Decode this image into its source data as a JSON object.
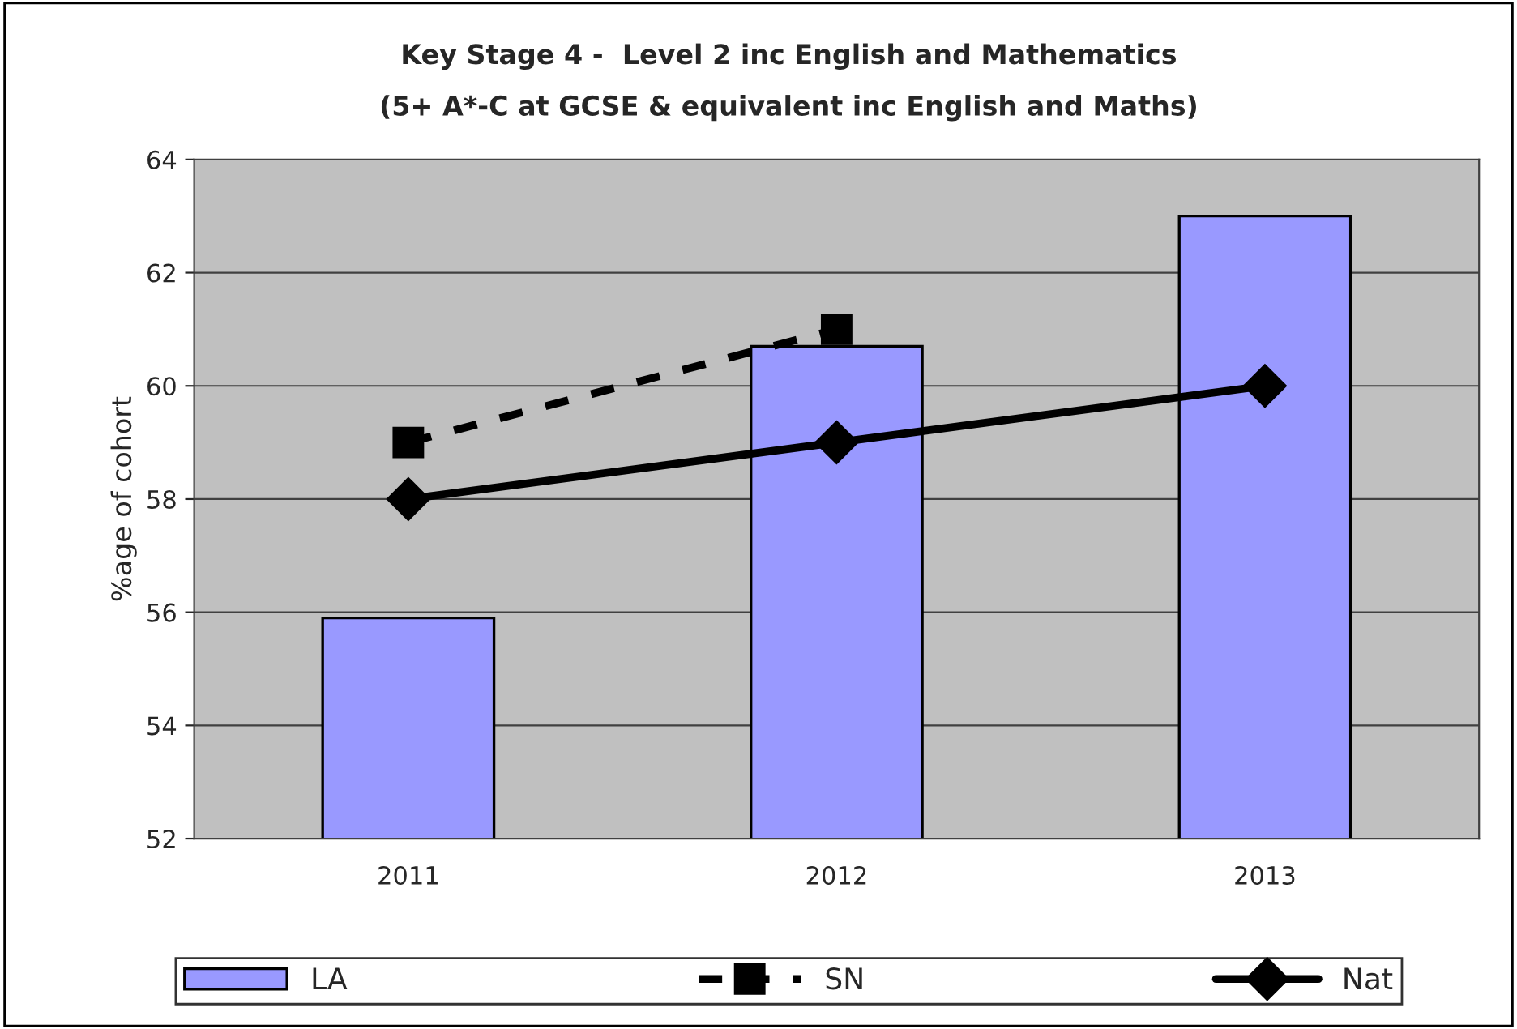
{
  "chart_data": {
    "type": "bar",
    "title": "Key Stage 4 -  Level 2 inc English and Mathematics",
    "subtitle": "(5+ A*-C at GCSE & equivalent inc English and Maths)",
    "ylabel": "%age of cohort",
    "categories": [
      "2011",
      "2012",
      "2013"
    ],
    "series": [
      {
        "name": "LA",
        "color": "#9999ff",
        "values": [
          55.9,
          60.7,
          63.0
        ]
      },
      {
        "name": "SN",
        "type": "line",
        "color": "#000000",
        "values": [
          59,
          61,
          null
        ],
        "marker": "square",
        "line_style": "dashed"
      },
      {
        "name": "Nat",
        "type": "line",
        "color": "#000000",
        "values": [
          58,
          59,
          60
        ],
        "marker": "diamond",
        "line_style": "solid"
      }
    ],
    "ylim": [
      52,
      64
    ],
    "yticks": [
      52,
      54,
      56,
      58,
      60,
      62,
      64
    ],
    "grid": "y",
    "legend": "bottom"
  }
}
